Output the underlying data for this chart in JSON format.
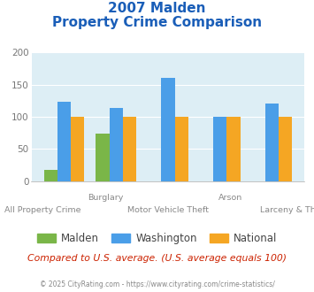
{
  "title_line1": "2007 Malden",
  "title_line2": "Property Crime Comparison",
  "categories": [
    "All Property Crime",
    "Burglary",
    "Motor Vehicle Theft",
    "Arson",
    "Larceny & Theft"
  ],
  "x_labels_top": [
    "",
    "Burglary",
    "",
    "Arson",
    ""
  ],
  "x_labels_bottom": [
    "All Property Crime",
    "",
    "Motor Vehicle Theft",
    "",
    "Larceny & Theft"
  ],
  "malden": [
    18,
    74,
    0,
    0,
    0
  ],
  "washington": [
    124,
    114,
    160,
    100,
    121
  ],
  "national": [
    100,
    100,
    100,
    100,
    100
  ],
  "malden_color": "#7ab648",
  "washington_color": "#4a9ee8",
  "national_color": "#f5a623",
  "bg_color": "#ddeef5",
  "ylim": [
    0,
    200
  ],
  "yticks": [
    0,
    50,
    100,
    150,
    200
  ],
  "title_color": "#1a5eb8",
  "footer_text": "Compared to U.S. average. (U.S. average equals 100)",
  "copyright_text": "© 2025 CityRating.com - https://www.cityrating.com/crime-statistics/",
  "legend_labels": [
    "Malden",
    "Washington",
    "National"
  ]
}
